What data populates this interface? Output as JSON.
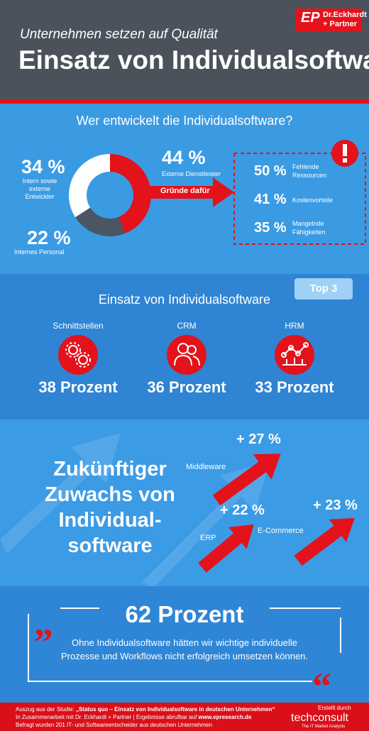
{
  "header": {
    "subtitle": "Unternehmen setzen auf Qualität",
    "title": "Einsatz von Individualsoftware",
    "logo": {
      "mark": "EP",
      "line1": "Dr.Eckhardt",
      "line2": "+ Partner"
    }
  },
  "chart_data": {
    "type": "pie",
    "donut": true,
    "title": "Wer entwickelt die Individualsoftware?",
    "categories": [
      "Externe Dienstleister",
      "Internes Personal",
      "Intern sowie externe Entwickler"
    ],
    "values": [
      44,
      22,
      34
    ],
    "value_labels": [
      "44 %",
      "22 %",
      "34 %"
    ],
    "colors": [
      "#e3121b",
      "#4a5663",
      "#ffffff"
    ]
  },
  "reasons": {
    "arrow_label": "Gründe dafür",
    "items": [
      {
        "value": "50 %",
        "label": "Fehlende Ressourcen"
      },
      {
        "value": "41 %",
        "label": "Kostenvorteile"
      },
      {
        "value": "35 %",
        "label": "Mangelnde Fähigkeiten"
      }
    ]
  },
  "top3": {
    "badge": "Top 3",
    "title": "Einsatz von Individualsoftware",
    "items": [
      {
        "label": "Schnittstellen",
        "value": "38 Prozent"
      },
      {
        "label": "CRM",
        "value": "36 Prozent"
      },
      {
        "label": "HRM",
        "value": "33 Prozent"
      }
    ]
  },
  "growth": {
    "title_lines": [
      "Zukünftiger",
      "Zuwachs von",
      "Individual-",
      "software"
    ],
    "items": [
      {
        "label": "Middleware",
        "value": "+ 27 %"
      },
      {
        "label": "ERP",
        "value": "+ 22 %"
      },
      {
        "label": "E-Commerce",
        "value": "+ 23 %"
      }
    ]
  },
  "quote": {
    "headline": "62 Prozent",
    "lines": [
      "Ohne Individualsoftware hätten wir wichtige individuelle",
      "Prozesse und Workflows nicht erfolgreich umsetzen können."
    ]
  },
  "footer": {
    "study_prefix": "Auszug aus der Studie:",
    "study_title": "„Status quo – Einsatz von Individualsoftware in deutschen Unternehmen“",
    "line2": "In Zusammenarbeit mit Dr. Eckhardt + Partner | Ergebnisse abrufbar auf",
    "url": "www.epresearch.de",
    "line3": "Befragt wurden 201 IT- und Softwareentscheider aus deutschen Unternehmen",
    "credit": "Erstellt durch",
    "brand": "techconsult",
    "tagline": "The IT Market Analysts"
  }
}
